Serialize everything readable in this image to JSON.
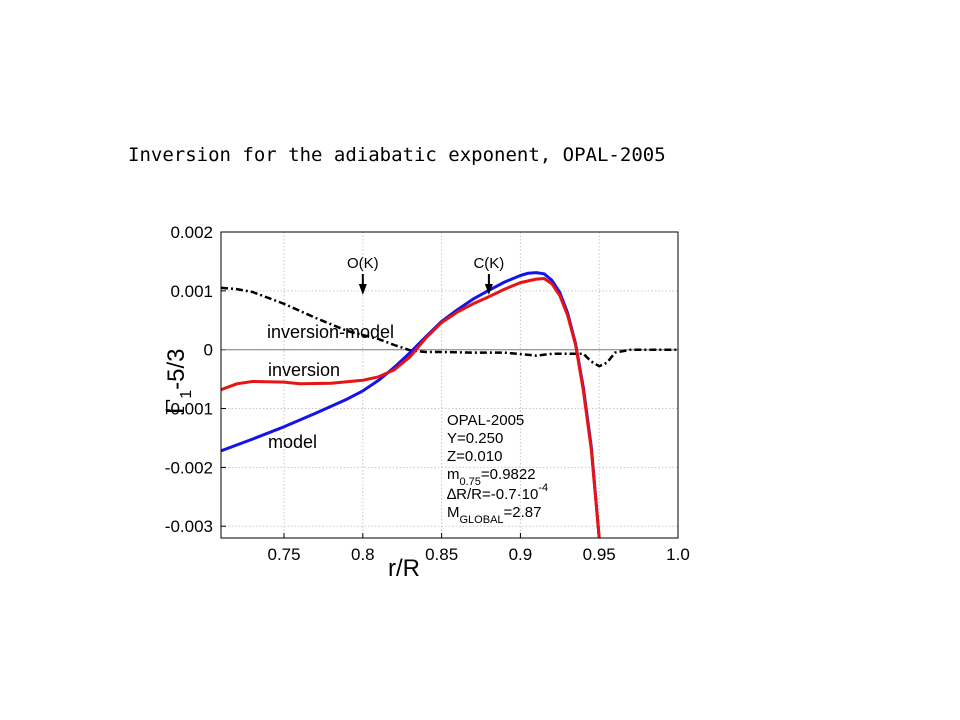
{
  "slide": {
    "title": "Inversion for the adiabatic exponent, OPAL-2005"
  },
  "chart_data": {
    "type": "line",
    "title": "",
    "xlabel": "r/R",
    "ylabel": {
      "symbol": "Γ",
      "sub": "1",
      "rest": "-5/3"
    },
    "xlim": [
      0.71,
      1.0
    ],
    "ylim": [
      -0.0032,
      0.002
    ],
    "xticks": [
      0.75,
      0.8,
      0.85,
      0.9,
      0.95,
      1.0
    ],
    "xtick_labels": [
      "0.75",
      "0.8",
      "0.85",
      "0.9",
      "0.95",
      "1.0"
    ],
    "yticks": [
      -0.003,
      -0.002,
      -0.001,
      0,
      0.001,
      0.002
    ],
    "ytick_labels": [
      "-0.003",
      "-0.002",
      "-0.001",
      "0",
      "0.001",
      "0.002"
    ],
    "grid": true,
    "series": [
      {
        "name": "model",
        "color": "#1414e6",
        "style": "solid",
        "x": [
          0.71,
          0.73,
          0.75,
          0.77,
          0.79,
          0.8,
          0.81,
          0.82,
          0.83,
          0.84,
          0.85,
          0.86,
          0.87,
          0.88,
          0.89,
          0.9,
          0.905,
          0.91,
          0.915,
          0.92,
          0.925,
          0.93,
          0.935,
          0.94,
          0.945,
          0.95
        ],
        "y": [
          -0.00172,
          -0.00152,
          -0.00131,
          -0.00108,
          -0.00084,
          -0.0007,
          -0.00052,
          -0.0003,
          -5e-05,
          0.00022,
          0.00048,
          0.00068,
          0.00086,
          0.00101,
          0.00115,
          0.00126,
          0.0013,
          0.00131,
          0.00129,
          0.00118,
          0.00097,
          0.00062,
          0.0001,
          -0.00065,
          -0.00165,
          -0.0032
        ]
      },
      {
        "name": "inversion",
        "color": "#e61414",
        "style": "solid",
        "x": [
          0.71,
          0.72,
          0.73,
          0.75,
          0.76,
          0.78,
          0.8,
          0.81,
          0.82,
          0.83,
          0.84,
          0.85,
          0.86,
          0.87,
          0.88,
          0.89,
          0.9,
          0.91,
          0.915,
          0.92,
          0.925,
          0.93,
          0.935,
          0.94,
          0.945,
          0.95
        ],
        "y": [
          -0.00068,
          -0.00058,
          -0.00054,
          -0.00055,
          -0.00058,
          -0.00057,
          -0.00052,
          -0.00046,
          -0.00034,
          -0.00012,
          0.0002,
          0.00046,
          0.00064,
          0.00078,
          0.0009,
          0.00103,
          0.00114,
          0.0012,
          0.00121,
          0.00112,
          0.00092,
          0.00058,
          8e-05,
          -0.0007,
          -0.0017,
          -0.0032
        ]
      },
      {
        "name": "inversion-model",
        "color": "#000000",
        "style": "dashdot",
        "x": [
          0.71,
          0.72,
          0.73,
          0.75,
          0.77,
          0.79,
          0.81,
          0.82,
          0.83,
          0.84,
          0.85,
          0.87,
          0.89,
          0.91,
          0.92,
          0.93,
          0.94,
          0.945,
          0.95,
          0.955,
          0.96,
          0.97,
          1.0
        ],
        "y": [
          0.00105,
          0.00103,
          0.00098,
          0.00078,
          0.00054,
          0.00032,
          0.00018,
          8e-05,
          -1e-05,
          -4e-05,
          -4e-05,
          -5e-05,
          -5e-05,
          -0.0001,
          -7e-05,
          -7e-05,
          -7e-05,
          -0.0002,
          -0.00028,
          -0.00022,
          -5e-05,
          0.0,
          0.0
        ]
      }
    ],
    "annotations": {
      "series_labels": [
        "inversion-model",
        "inversion",
        "model"
      ],
      "arrows": [
        {
          "label": "O(K)",
          "x": 0.8
        },
        {
          "label": "C(K)",
          "x": 0.88
        }
      ],
      "info_box": {
        "line1": "OPAL-2005",
        "line2": "Y=0.250",
        "line3": "Z=0.010",
        "m_base": "m",
        "m_sub": "0.75",
        "m_val": "=0.9822",
        "dr_text": "∆R/R=-0.7·10",
        "dr_exp": "-4",
        "mg_base": "M",
        "mg_sub": "GLOBAL",
        "mg_val": "=2.87"
      }
    }
  }
}
